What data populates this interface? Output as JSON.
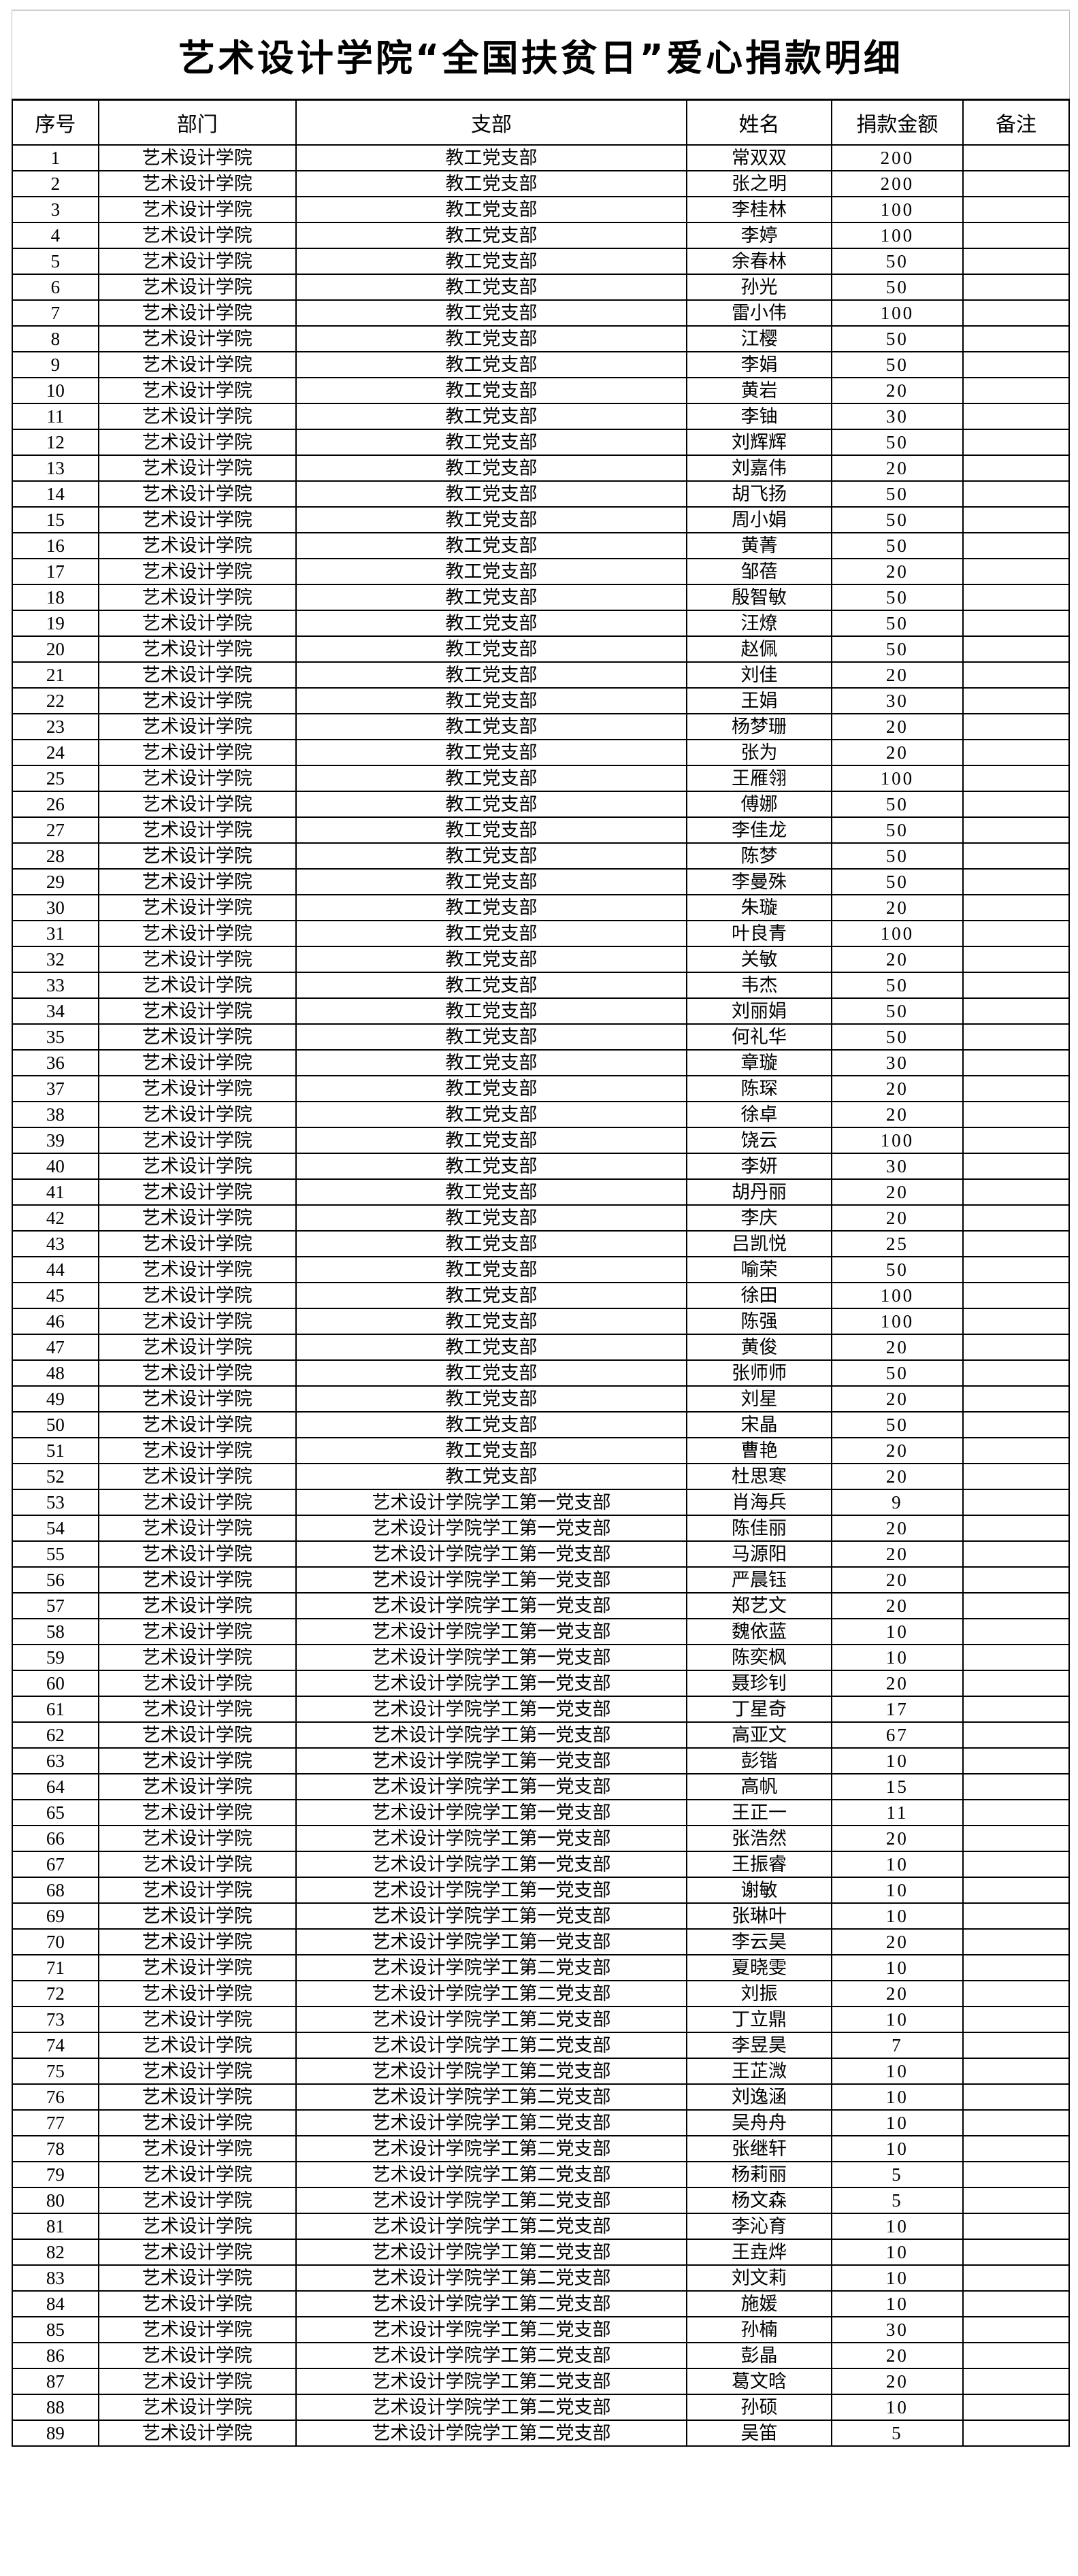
{
  "title": "艺术设计学院“全国扶贫日”爱心捐款明细",
  "columns": {
    "seq": "序号",
    "dept": "部门",
    "branch": "支部",
    "name": "姓名",
    "amount": "捐款金额",
    "remark": "备注"
  },
  "department": "艺术设计学院",
  "branches": [
    "教工党支部",
    "艺术设计学院学工第一党支部",
    "艺术设计学院学工第二党支部"
  ],
  "rows": [
    {
      "seq": 1,
      "branch": 0,
      "name": "常双双",
      "amount": 200
    },
    {
      "seq": 2,
      "branch": 0,
      "name": "张之明",
      "amount": 200
    },
    {
      "seq": 3,
      "branch": 0,
      "name": "李桂林",
      "amount": 100
    },
    {
      "seq": 4,
      "branch": 0,
      "name": "李婷",
      "amount": 100
    },
    {
      "seq": 5,
      "branch": 0,
      "name": "余春林",
      "amount": 50
    },
    {
      "seq": 6,
      "branch": 0,
      "name": "孙光",
      "amount": 50
    },
    {
      "seq": 7,
      "branch": 0,
      "name": "雷小伟",
      "amount": 100
    },
    {
      "seq": 8,
      "branch": 0,
      "name": "江樱",
      "amount": 50
    },
    {
      "seq": 9,
      "branch": 0,
      "name": "李娟",
      "amount": 50
    },
    {
      "seq": 10,
      "branch": 0,
      "name": "黄岩",
      "amount": 20
    },
    {
      "seq": 11,
      "branch": 0,
      "name": "李铀",
      "amount": 30
    },
    {
      "seq": 12,
      "branch": 0,
      "name": "刘辉辉",
      "amount": 50
    },
    {
      "seq": 13,
      "branch": 0,
      "name": "刘嘉伟",
      "amount": 20
    },
    {
      "seq": 14,
      "branch": 0,
      "name": "胡飞扬",
      "amount": 50
    },
    {
      "seq": 15,
      "branch": 0,
      "name": "周小娟",
      "amount": 50
    },
    {
      "seq": 16,
      "branch": 0,
      "name": "黄菁",
      "amount": 50
    },
    {
      "seq": 17,
      "branch": 0,
      "name": "邹蓓",
      "amount": 20
    },
    {
      "seq": 18,
      "branch": 0,
      "name": "殷智敏",
      "amount": 50
    },
    {
      "seq": 19,
      "branch": 0,
      "name": "汪燎",
      "amount": 50
    },
    {
      "seq": 20,
      "branch": 0,
      "name": "赵佩",
      "amount": 50
    },
    {
      "seq": 21,
      "branch": 0,
      "name": "刘佳",
      "amount": 20
    },
    {
      "seq": 22,
      "branch": 0,
      "name": "王娟",
      "amount": 30
    },
    {
      "seq": 23,
      "branch": 0,
      "name": "杨梦珊",
      "amount": 20
    },
    {
      "seq": 24,
      "branch": 0,
      "name": "张为",
      "amount": 20
    },
    {
      "seq": 25,
      "branch": 0,
      "name": "王雁翎",
      "amount": 100
    },
    {
      "seq": 26,
      "branch": 0,
      "name": "傅娜",
      "amount": 50
    },
    {
      "seq": 27,
      "branch": 0,
      "name": "李佳龙",
      "amount": 50
    },
    {
      "seq": 28,
      "branch": 0,
      "name": "陈梦",
      "amount": 50
    },
    {
      "seq": 29,
      "branch": 0,
      "name": "李曼殊",
      "amount": 50
    },
    {
      "seq": 30,
      "branch": 0,
      "name": "朱璇",
      "amount": 20
    },
    {
      "seq": 31,
      "branch": 0,
      "name": "叶良青",
      "amount": 100
    },
    {
      "seq": 32,
      "branch": 0,
      "name": "关敏",
      "amount": 20
    },
    {
      "seq": 33,
      "branch": 0,
      "name": "韦杰",
      "amount": 50
    },
    {
      "seq": 34,
      "branch": 0,
      "name": "刘丽娟",
      "amount": 50
    },
    {
      "seq": 35,
      "branch": 0,
      "name": "何礼华",
      "amount": 50
    },
    {
      "seq": 36,
      "branch": 0,
      "name": "章璇",
      "amount": 30
    },
    {
      "seq": 37,
      "branch": 0,
      "name": "陈琛",
      "amount": 20
    },
    {
      "seq": 38,
      "branch": 0,
      "name": "徐卓",
      "amount": 20
    },
    {
      "seq": 39,
      "branch": 0,
      "name": "饶云",
      "amount": 100
    },
    {
      "seq": 40,
      "branch": 0,
      "name": "李妍",
      "amount": 30
    },
    {
      "seq": 41,
      "branch": 0,
      "name": "胡丹丽",
      "amount": 20
    },
    {
      "seq": 42,
      "branch": 0,
      "name": "李庆",
      "amount": 20
    },
    {
      "seq": 43,
      "branch": 0,
      "name": "吕凯悦",
      "amount": 25
    },
    {
      "seq": 44,
      "branch": 0,
      "name": "喻荣",
      "amount": 50
    },
    {
      "seq": 45,
      "branch": 0,
      "name": "徐田",
      "amount": 100
    },
    {
      "seq": 46,
      "branch": 0,
      "name": "陈强",
      "amount": 100
    },
    {
      "seq": 47,
      "branch": 0,
      "name": "黄俊",
      "amount": 20
    },
    {
      "seq": 48,
      "branch": 0,
      "name": "张师师",
      "amount": 50
    },
    {
      "seq": 49,
      "branch": 0,
      "name": "刘星",
      "amount": 20
    },
    {
      "seq": 50,
      "branch": 0,
      "name": "宋晶",
      "amount": 50
    },
    {
      "seq": 51,
      "branch": 0,
      "name": "曹艳",
      "amount": 20
    },
    {
      "seq": 52,
      "branch": 0,
      "name": "杜思寒",
      "amount": 20
    },
    {
      "seq": 53,
      "branch": 1,
      "name": "肖海兵",
      "amount": 9
    },
    {
      "seq": 54,
      "branch": 1,
      "name": "陈佳丽",
      "amount": 20
    },
    {
      "seq": 55,
      "branch": 1,
      "name": "马源阳",
      "amount": 20
    },
    {
      "seq": 56,
      "branch": 1,
      "name": "严晨钰",
      "amount": 20
    },
    {
      "seq": 57,
      "branch": 1,
      "name": "郑艺文",
      "amount": 20
    },
    {
      "seq": 58,
      "branch": 1,
      "name": "魏依蓝",
      "amount": 10
    },
    {
      "seq": 59,
      "branch": 1,
      "name": "陈奕枫",
      "amount": 10
    },
    {
      "seq": 60,
      "branch": 1,
      "name": "聂珍钊",
      "amount": 20
    },
    {
      "seq": 61,
      "branch": 1,
      "name": "丁星奇",
      "amount": 17
    },
    {
      "seq": 62,
      "branch": 1,
      "name": "高亚文",
      "amount": 67
    },
    {
      "seq": 63,
      "branch": 1,
      "name": "彭锴",
      "amount": 10
    },
    {
      "seq": 64,
      "branch": 1,
      "name": "高帆",
      "amount": 15
    },
    {
      "seq": 65,
      "branch": 1,
      "name": "王正一",
      "amount": 11
    },
    {
      "seq": 66,
      "branch": 1,
      "name": "张浩然",
      "amount": 20
    },
    {
      "seq": 67,
      "branch": 1,
      "name": "王振睿",
      "amount": 10
    },
    {
      "seq": 68,
      "branch": 1,
      "name": "谢敏",
      "amount": 10
    },
    {
      "seq": 69,
      "branch": 1,
      "name": "张琳叶",
      "amount": 10
    },
    {
      "seq": 70,
      "branch": 1,
      "name": "李云昊",
      "amount": 20
    },
    {
      "seq": 71,
      "branch": 2,
      "name": "夏晓雯",
      "amount": 10
    },
    {
      "seq": 72,
      "branch": 2,
      "name": "刘振",
      "amount": 20
    },
    {
      "seq": 73,
      "branch": 2,
      "name": "丁立鼎",
      "amount": 10
    },
    {
      "seq": 74,
      "branch": 2,
      "name": "李昱昊",
      "amount": 7
    },
    {
      "seq": 75,
      "branch": 2,
      "name": "王芷溦",
      "amount": 10
    },
    {
      "seq": 76,
      "branch": 2,
      "name": "刘逸涵",
      "amount": 10
    },
    {
      "seq": 77,
      "branch": 2,
      "name": "吴舟舟",
      "amount": 10
    },
    {
      "seq": 78,
      "branch": 2,
      "name": "张继轩",
      "amount": 10
    },
    {
      "seq": 79,
      "branch": 2,
      "name": "杨莉丽",
      "amount": 5
    },
    {
      "seq": 80,
      "branch": 2,
      "name": "杨文森",
      "amount": 5
    },
    {
      "seq": 81,
      "branch": 2,
      "name": "李沁育",
      "amount": 10
    },
    {
      "seq": 82,
      "branch": 2,
      "name": "王垚烨",
      "amount": 10
    },
    {
      "seq": 83,
      "branch": 2,
      "name": "刘文莉",
      "amount": 10
    },
    {
      "seq": 84,
      "branch": 2,
      "name": "施媛",
      "amount": 10
    },
    {
      "seq": 85,
      "branch": 2,
      "name": "孙楠",
      "amount": 30
    },
    {
      "seq": 86,
      "branch": 2,
      "name": "彭晶",
      "amount": 20
    },
    {
      "seq": 87,
      "branch": 2,
      "name": "葛文晗",
      "amount": 20
    },
    {
      "seq": 88,
      "branch": 2,
      "name": "孙硕",
      "amount": 10
    },
    {
      "seq": 89,
      "branch": 2,
      "name": "吴笛",
      "amount": 5
    }
  ]
}
